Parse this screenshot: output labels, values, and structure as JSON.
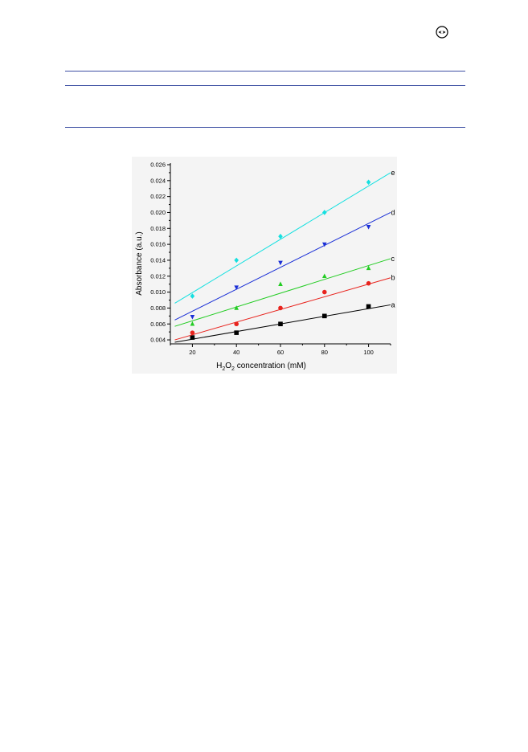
{
  "header": {
    "logo_icon": "publisher-logo-icon"
  },
  "colors": {
    "rules": "#3d4fa3"
  },
  "chart_data": {
    "type": "scatter",
    "xlabel_parts": [
      "H",
      "2",
      "O",
      "2",
      " concentration (mM)"
    ],
    "ylabel": "Absorbance (a.u.)",
    "xlim": [
      10,
      110
    ],
    "ylim": [
      0.0035,
      0.026
    ],
    "x_ticks": [
      20,
      40,
      60,
      80,
      100
    ],
    "y_ticks": [
      "0.004",
      "0.006",
      "0.008",
      "0.010",
      "0.012",
      "0.014",
      "0.016",
      "0.018",
      "0.020",
      "0.022",
      "0.024",
      "0.026"
    ],
    "grid": false,
    "x": [
      20,
      40,
      60,
      80,
      100
    ],
    "series": [
      {
        "name": "a",
        "marker": "square",
        "color": "#000000",
        "values": [
          0.0043,
          0.0049,
          0.006,
          0.007,
          0.0082
        ],
        "fit": [
          [
            12,
            0.0037
          ],
          [
            110,
            0.0084
          ]
        ]
      },
      {
        "name": "b",
        "marker": "circle",
        "color": "#e8231d",
        "values": [
          0.0049,
          0.006,
          0.008,
          0.01,
          0.0111
        ],
        "fit": [
          [
            12,
            0.004
          ],
          [
            110,
            0.0118
          ]
        ]
      },
      {
        "name": "c",
        "marker": "triangle-up",
        "color": "#22cc22",
        "values": [
          0.006,
          0.008,
          0.011,
          0.012,
          0.013
        ],
        "fit": [
          [
            12,
            0.0057
          ],
          [
            110,
            0.0142
          ]
        ]
      },
      {
        "name": "d",
        "marker": "triangle-down",
        "color": "#1a2fd6",
        "values": [
          0.0069,
          0.0106,
          0.0137,
          0.016,
          0.0182
        ],
        "fit": [
          [
            12,
            0.0065
          ],
          [
            110,
            0.02
          ]
        ]
      },
      {
        "name": "e",
        "marker": "diamond",
        "color": "#15e0e0",
        "values": [
          0.0095,
          0.014,
          0.017,
          0.02,
          0.0238
        ],
        "fit": [
          [
            12,
            0.0086
          ],
          [
            110,
            0.025
          ]
        ]
      }
    ]
  }
}
